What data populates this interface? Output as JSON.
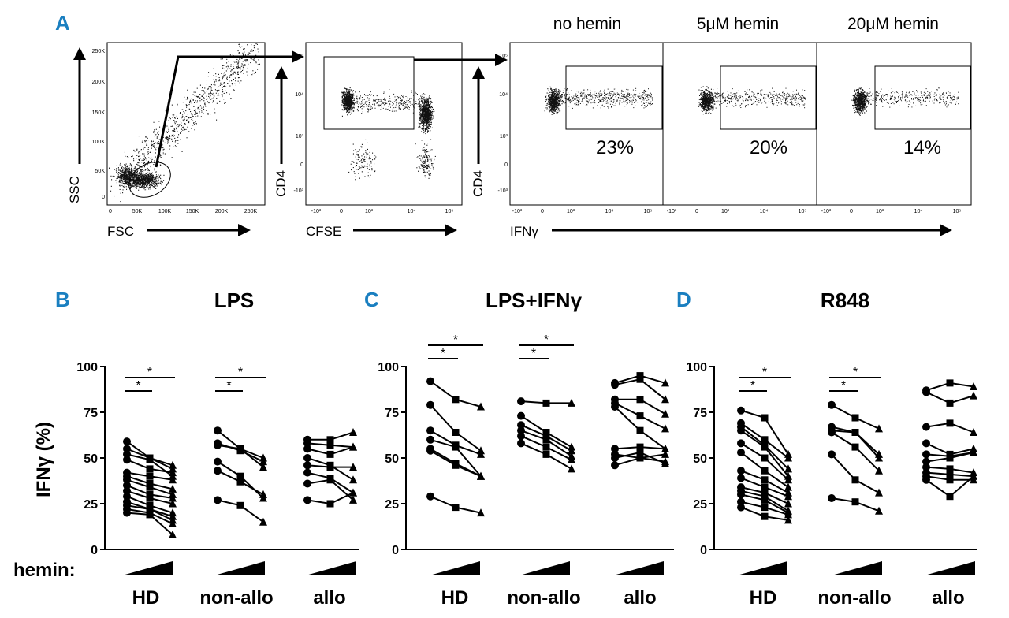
{
  "colors": {
    "panel_letter": "#1a7fc0",
    "ink": "#000000",
    "dots": "#111111"
  },
  "panel_a": {
    "letter": "A",
    "plot1": {
      "ylabel": "SSC",
      "xlabel": "FSC",
      "yticks": [
        "250K",
        "200K",
        "150K",
        "100K",
        "50K",
        "0"
      ],
      "xticks": [
        "0",
        "50K",
        "100K",
        "150K",
        "200K",
        "250K"
      ]
    },
    "plot2": {
      "ylabel": "CD4",
      "xlabel": "CFSE",
      "yticks": [
        "10⁵",
        "10⁴",
        "10³",
        "0",
        "-10³"
      ],
      "xticks": [
        "-10³",
        "0",
        "10³",
        "10⁴",
        "10⁵"
      ]
    },
    "plot3": {
      "ylabel": "CD4",
      "xlabel": "IFNγ",
      "yticks": [
        "10⁵",
        "10⁴",
        "10³",
        "0",
        "-10³"
      ],
      "subplots": [
        {
          "title": "no hemin",
          "percent": "23%",
          "xticks": [
            "-10³",
            "0",
            "10³",
            "10⁴",
            "10⁵"
          ]
        },
        {
          "title": "5μM hemin",
          "percent": "20%",
          "xticks": [
            "-10³",
            "0",
            "10³",
            "10⁴",
            "10⁵"
          ]
        },
        {
          "title": "20μM hemin",
          "percent": "14%",
          "xticks": [
            "-10³",
            "0",
            "10³",
            "10⁴",
            "10⁵"
          ]
        }
      ]
    }
  },
  "chart_data": [
    {
      "type": "line",
      "panel": "B",
      "title": "LPS",
      "ylabel": "IFNγ (%)",
      "ylim": [
        0,
        100
      ],
      "yticks": [
        "100",
        "75",
        "50",
        "25",
        "0"
      ],
      "row_label": "hemin:",
      "categories": [
        "HD",
        "non-allo",
        "allo"
      ],
      "significance": [
        "*",
        "*",
        "*",
        "*"
      ],
      "groups": [
        {
          "name": "HD",
          "series": [
            [
              59,
              50,
              46
            ],
            [
              55,
              50,
              44
            ],
            [
              52,
              49,
              40
            ],
            [
              49,
              44,
              42
            ],
            [
              42,
              40,
              38
            ],
            [
              40,
              36,
              33
            ],
            [
              38,
              34,
              30
            ],
            [
              35,
              30,
              28
            ],
            [
              32,
              28,
              25
            ],
            [
              29,
              24,
              20
            ],
            [
              26,
              22,
              18
            ],
            [
              24,
              22,
              16
            ],
            [
              22,
              20,
              14
            ],
            [
              20,
              19,
              8
            ]
          ]
        },
        {
          "name": "non-allo",
          "series": [
            [
              65,
              55,
              50
            ],
            [
              58,
              54,
              48
            ],
            [
              57,
              55,
              45
            ],
            [
              48,
              40,
              28
            ],
            [
              43,
              37,
              30
            ],
            [
              27,
              24,
              15
            ]
          ]
        },
        {
          "name": "allo",
          "series": [
            [
              60,
              60,
              64
            ],
            [
              58,
              57,
              56
            ],
            [
              55,
              52,
              56
            ],
            [
              50,
              46,
              38
            ],
            [
              46,
              45,
              45
            ],
            [
              42,
              39,
              31
            ],
            [
              36,
              38,
              27
            ],
            [
              27,
              25,
              31
            ]
          ]
        }
      ]
    },
    {
      "type": "line",
      "panel": "C",
      "title": "LPS+IFNγ",
      "ylabel": "",
      "ylim": [
        0,
        100
      ],
      "yticks": [
        "100",
        "75",
        "50",
        "25",
        "0"
      ],
      "categories": [
        "HD",
        "non-allo",
        "allo"
      ],
      "significance": [
        "*",
        "*",
        "*",
        "*"
      ],
      "groups": [
        {
          "name": "HD",
          "series": [
            [
              92,
              82,
              78
            ],
            [
              79,
              64,
              54
            ],
            [
              65,
              57,
              52
            ],
            [
              60,
              56,
              40
            ],
            [
              55,
              47,
              40
            ],
            [
              54,
              46,
              40
            ],
            [
              29,
              23,
              20
            ]
          ]
        },
        {
          "name": "non-allo",
          "series": [
            [
              81,
              80,
              80
            ],
            [
              73,
              64,
              56
            ],
            [
              68,
              62,
              54
            ],
            [
              65,
              60,
              51
            ],
            [
              62,
              56,
              49
            ],
            [
              58,
              52,
              44
            ]
          ]
        },
        {
          "name": "allo",
          "series": [
            [
              91,
              95,
              91
            ],
            [
              90,
              93,
              82
            ],
            [
              82,
              82,
              74
            ],
            [
              80,
              73,
              66
            ],
            [
              78,
              65,
              55
            ],
            [
              55,
              56,
              55
            ],
            [
              52,
              50,
              52
            ],
            [
              50,
              53,
              47
            ],
            [
              46,
              50,
              48
            ]
          ]
        }
      ]
    },
    {
      "type": "line",
      "panel": "D",
      "title": "R848",
      "ylabel": "",
      "ylim": [
        0,
        100
      ],
      "yticks": [
        "100",
        "75",
        "50",
        "25",
        "0"
      ],
      "categories": [
        "HD",
        "non-allo",
        "allo"
      ],
      "significance": [
        "*",
        "*",
        "*",
        "*"
      ],
      "groups": [
        {
          "name": "HD",
          "series": [
            [
              76,
              72,
              52
            ],
            [
              69,
              60,
              50
            ],
            [
              67,
              57,
              44
            ],
            [
              65,
              56,
              40
            ],
            [
              58,
              50,
              38
            ],
            [
              53,
              43,
              34
            ],
            [
              43,
              38,
              31
            ],
            [
              39,
              34,
              29
            ],
            [
              34,
              31,
              25
            ],
            [
              32,
              29,
              21
            ],
            [
              30,
              27,
              20
            ],
            [
              26,
              23,
              19
            ],
            [
              23,
              18,
              16
            ]
          ]
        },
        {
          "name": "non-allo",
          "series": [
            [
              79,
              72,
              66
            ],
            [
              67,
              64,
              52
            ],
            [
              65,
              64,
              50
            ],
            [
              64,
              56,
              43
            ],
            [
              52,
              38,
              31
            ],
            [
              28,
              26,
              21
            ]
          ]
        },
        {
          "name": "allo",
          "series": [
            [
              87,
              91,
              89
            ],
            [
              86,
              80,
              84
            ],
            [
              67,
              69,
              64
            ],
            [
              58,
              52,
              55
            ],
            [
              52,
              51,
              53
            ],
            [
              48,
              50,
              53
            ],
            [
              45,
              44,
              42
            ],
            [
              42,
              41,
              40
            ],
            [
              40,
              38,
              38
            ],
            [
              38,
              29,
              40
            ]
          ]
        }
      ]
    }
  ]
}
